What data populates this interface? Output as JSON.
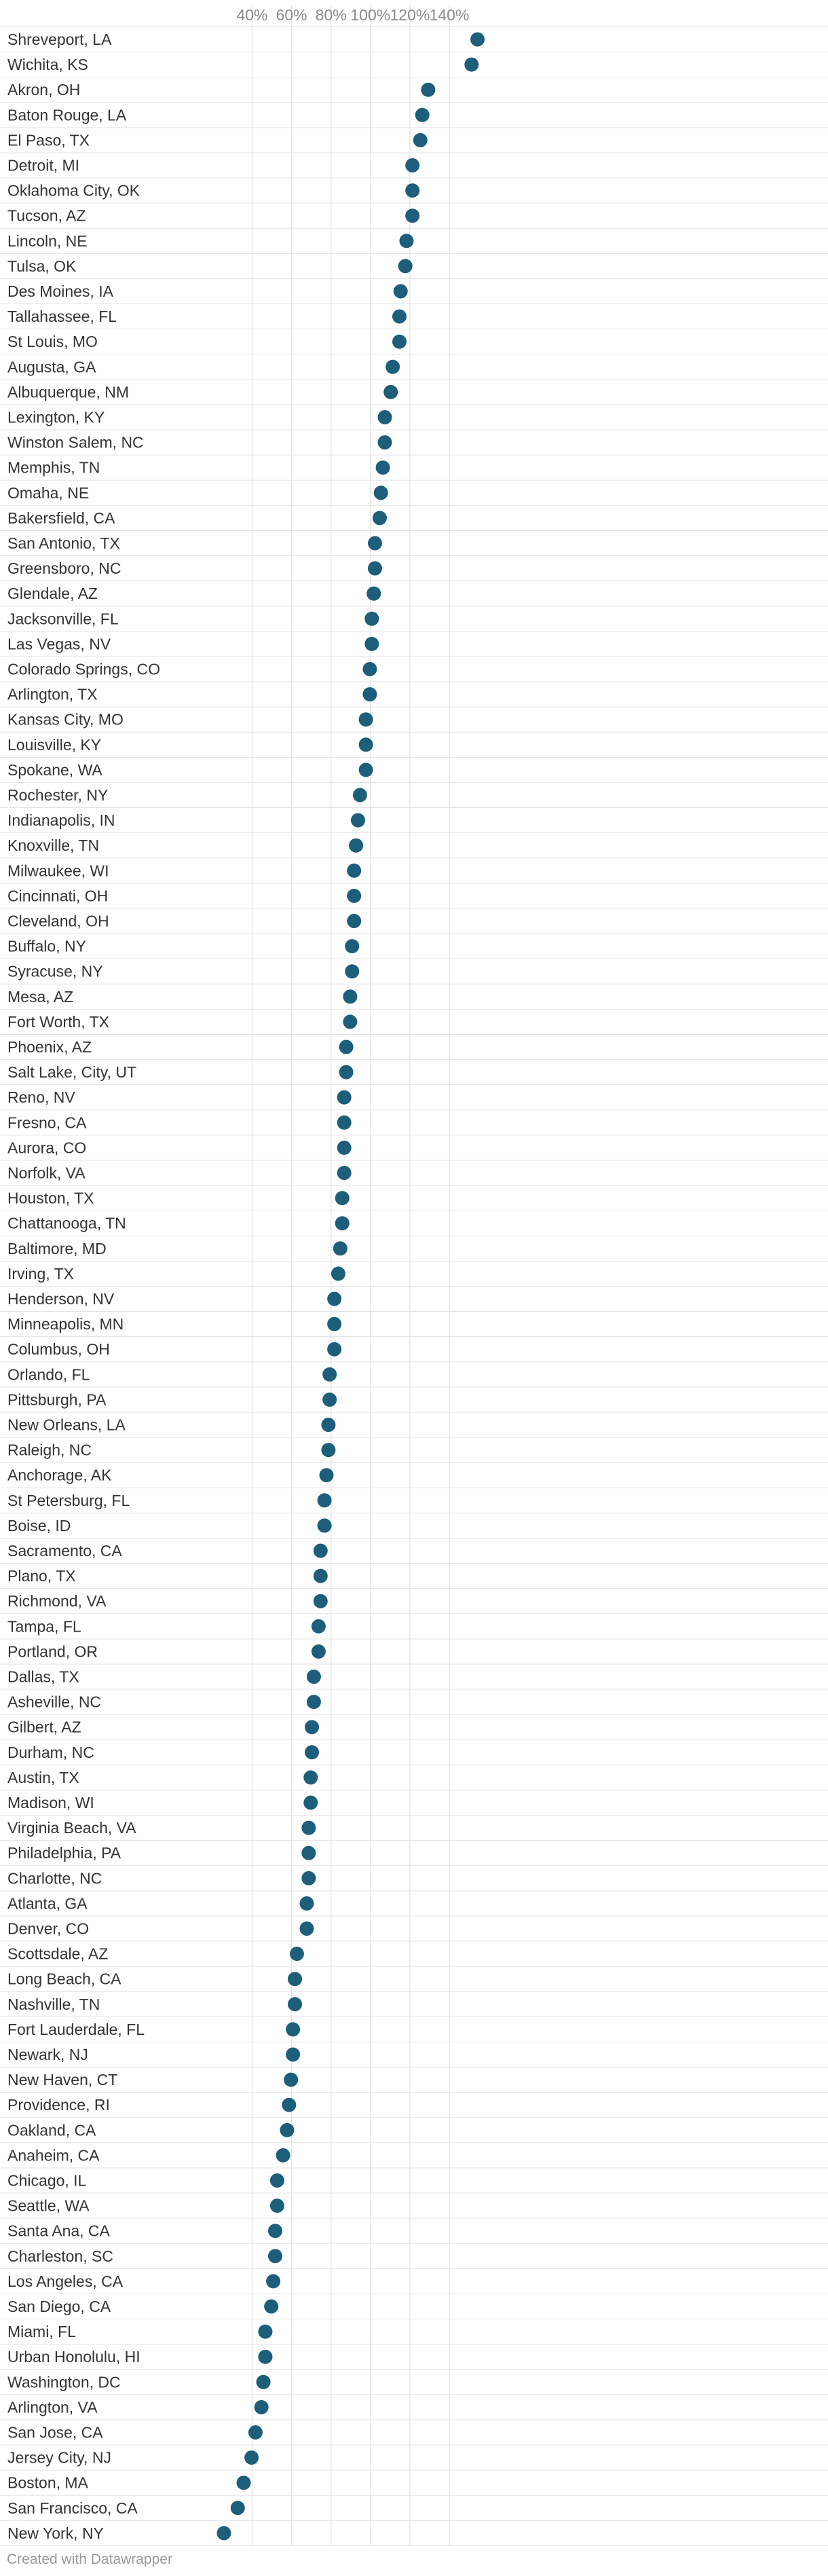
{
  "chart_data": {
    "type": "scatter",
    "orientation": "horizontal-dot",
    "xlabel": "",
    "ylabel": "",
    "xlim": [
      20,
      155
    ],
    "xticks": [
      40,
      60,
      80,
      100,
      120,
      140
    ],
    "tick_labels": [
      "40%",
      "60%",
      "80%",
      "100%",
      "120%",
      "140%"
    ],
    "grid": true,
    "dot_color": "#1d5e7a",
    "gridline_color": "#e3e3e3",
    "categories": [
      "Shreveport, LA",
      "Wichita, KS",
      "Akron, OH",
      "Baton Rouge, LA",
      "El Paso, TX",
      "Detroit, MI",
      "Oklahoma City, OK",
      "Tucson, AZ",
      "Lincoln, NE",
      "Tulsa, OK",
      "Des Moines, IA",
      "Tallahassee, FL",
      "St Louis, MO",
      "Augusta, GA",
      "Albuquerque, NM",
      "Lexington, KY",
      "Winston Salem, NC",
      "Memphis, TN",
      "Omaha, NE",
      "Bakersfield, CA",
      "San Antonio, TX",
      "Greensboro, NC",
      "Glendale, AZ",
      "Jacksonville, FL",
      "Las Vegas, NV",
      "Colorado Springs, CO",
      "Arlington, TX",
      "Kansas City, MO",
      "Louisville, KY",
      "Spokane, WA",
      "Rochester, NY",
      "Indianapolis, IN",
      "Knoxville, TN",
      "Milwaukee, WI",
      "Cincinnati, OH",
      "Cleveland, OH",
      "Buffalo, NY",
      "Syracuse, NY",
      "Mesa, AZ",
      "Fort Worth, TX",
      "Phoenix, AZ",
      "Salt Lake, City, UT",
      "Reno, NV",
      "Fresno, CA",
      "Aurora, CO",
      "Norfolk, VA",
      "Houston, TX",
      "Chattanooga, TN",
      "Baltimore, MD",
      "Irving, TX",
      "Henderson, NV",
      "Minneapolis, MN",
      "Columbus, OH",
      "Orlando, FL",
      "Pittsburgh, PA",
      "New Orleans, LA",
      "Raleigh, NC",
      "Anchorage, AK",
      "St Petersburg, FL",
      "Boise, ID",
      "Sacramento, CA",
      "Plano, TX",
      "Richmond, VA",
      "Tampa, FL",
      "Portland, OR",
      "Dallas, TX",
      "Asheville, NC",
      "Gilbert, AZ",
      "Durham, NC",
      "Austin, TX",
      "Madison, WI",
      "Virginia Beach, VA",
      "Philadelphia, PA",
      "Charlotte, NC",
      "Atlanta, GA",
      "Denver, CO",
      "Scottsdale, AZ",
      "Long Beach, CA",
      "Nashville, TN",
      "Fort Lauderdale, FL",
      "Newark, NJ",
      "New Haven, CT",
      "Providence, RI",
      "Oakland, CA",
      "Anaheim, CA",
      "Chicago, IL",
      "Seattle, WA",
      "Santa Ana, CA",
      "Charleston, SC",
      "Los Angeles, CA",
      "San Diego, CA",
      "Miami, FL",
      "Urban Honolulu, HI",
      "Washington, DC",
      "Arlington, VA",
      "San Jose, CA",
      "Jersey City, NJ",
      "Boston, MA",
      "San Francisco, CA",
      "New York, NY"
    ],
    "values": [
      154.3,
      151.3,
      129.3,
      126.3,
      125.3,
      121.3,
      121.3,
      121.3,
      118.3,
      117.7,
      115.3,
      114.7,
      114.7,
      111.3,
      110.3,
      107.3,
      107.3,
      106.3,
      105.3,
      104.7,
      102.3,
      102.3,
      101.7,
      100.7,
      100.7,
      99.7,
      99.7,
      97.7,
      97.7,
      97.7,
      94.7,
      93.7,
      92.7,
      91.7,
      91.7,
      91.7,
      90.7,
      90.7,
      89.7,
      89.7,
      87.7,
      87.7,
      86.7,
      86.7,
      86.7,
      86.7,
      85.7,
      85.7,
      84.7,
      83.7,
      81.7,
      81.7,
      81.7,
      79.3,
      79.3,
      78.7,
      78.7,
      77.7,
      76.7,
      76.7,
      74.7,
      74.7,
      74.7,
      73.7,
      73.7,
      71.3,
      71.3,
      70.3,
      70.3,
      69.7,
      69.7,
      68.7,
      68.7,
      68.7,
      67.7,
      67.7,
      62.7,
      61.7,
      61.7,
      60.7,
      60.7,
      59.7,
      58.7,
      57.7,
      55.7,
      52.7,
      52.7,
      51.7,
      51.7,
      50.7,
      49.7,
      46.7,
      46.7,
      45.7,
      44.7,
      41.7,
      39.7,
      35.7,
      32.7,
      25.7
    ]
  },
  "footer": {
    "credit": "Created with Datawrapper"
  }
}
